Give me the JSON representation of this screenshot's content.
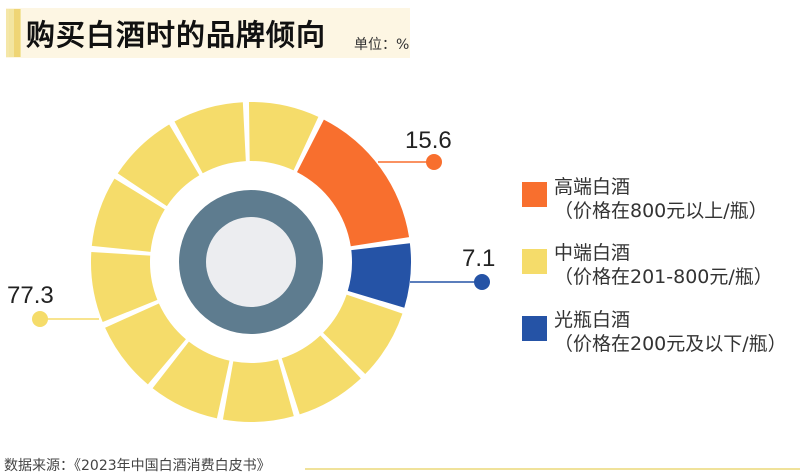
{
  "header": {
    "title": "购买白酒时的品牌倾向",
    "unit": "单位：%"
  },
  "colors": {
    "high_end": "#f86f2e",
    "mid_range": "#f5dc6a",
    "light_bottle": "#2553a6",
    "center_ring": "#5e7c8f",
    "center_fill": "#ecedf0",
    "header_band": "#fdf6e3"
  },
  "labels": {
    "high_end_value": "15.6",
    "light_bottle_value": "7.1",
    "mid_range_value": "77.3"
  },
  "legend": [
    {
      "name": "高端白酒",
      "desc": "（价格在800元以上/瓶）",
      "color": "#f86f2e"
    },
    {
      "name": "中端白酒",
      "desc": "（价格在201-800元/瓶）",
      "color": "#f5dc6a"
    },
    {
      "name": "光瓶白酒",
      "desc": "（价格在200元及以下/瓶）",
      "color": "#2553a6"
    }
  ],
  "footer": {
    "source": "数据来源：《2023年中国白酒消费白皮书》"
  },
  "chart_data": {
    "type": "pie",
    "title": "购买白酒时的品牌倾向",
    "unit": "%",
    "categories": [
      "高端白酒",
      "中端白酒",
      "光瓶白酒"
    ],
    "descriptions": [
      "价格在800元以上/瓶",
      "价格在201-800元/瓶",
      "价格在200元及以下/瓶"
    ],
    "values": [
      15.6,
      77.3,
      7.1
    ],
    "colors": [
      "#f86f2e",
      "#f5dc6a",
      "#2553a6"
    ],
    "legend_position": "right",
    "style": "segmented donut"
  }
}
